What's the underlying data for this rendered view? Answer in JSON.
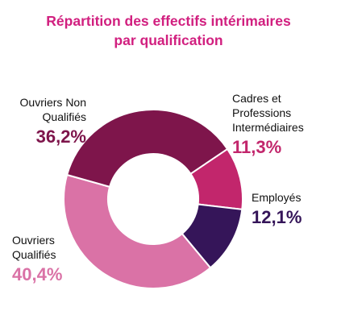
{
  "chart_data": {
    "type": "pie",
    "title": [
      "Répartition des effectifs intérimaires",
      "par qualification"
    ],
    "slices": [
      {
        "name_lines": [
          "Cadres et Professions",
          "Intermédiaires"
        ],
        "label": "11,3%",
        "value": 11.3,
        "color": "#c2266c"
      },
      {
        "name_lines": [
          "Employés"
        ],
        "label": "12,1%",
        "value": 12.1,
        "color": "#351559"
      },
      {
        "name_lines": [
          "Ouvriers",
          "Qualifiés"
        ],
        "label": "40,4%",
        "value": 40.4,
        "color": "#da72a6"
      },
      {
        "name_lines": [
          "Ouvriers Non",
          "Qualifiés"
        ],
        "label": "36,2%",
        "value": 36.2,
        "color": "#7e154b"
      }
    ],
    "legend": "none"
  }
}
